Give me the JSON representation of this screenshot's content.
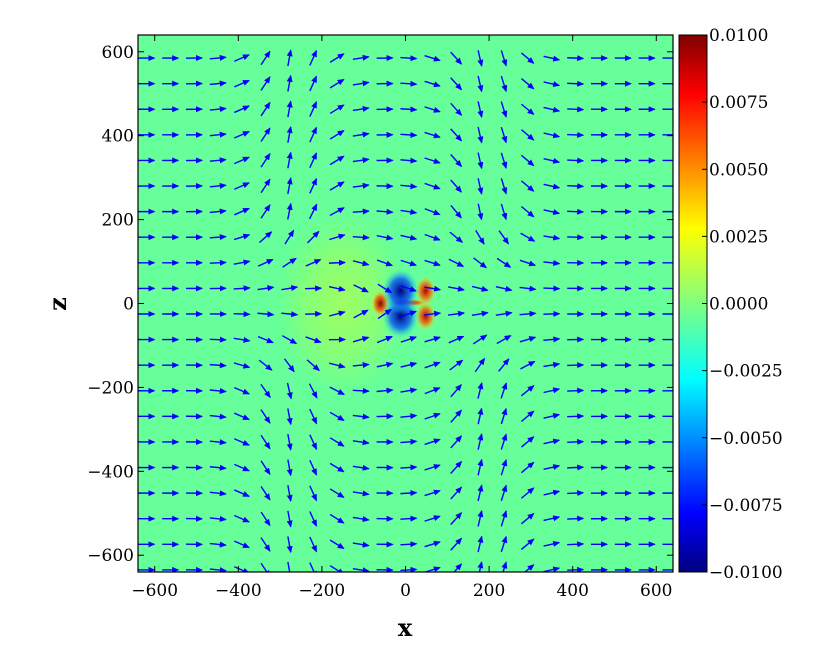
{
  "chart_data": {
    "type": "heatmap",
    "subtype": "heatmap-with-vector-field",
    "title": "",
    "xlabel": "x",
    "ylabel": "z",
    "xlim": [
      -640,
      640
    ],
    "ylim": [
      -640,
      640
    ],
    "grid": false,
    "x_ticks": [
      -600,
      -400,
      -200,
      0,
      200,
      400,
      600
    ],
    "x_tick_labels": [
      "−600",
      "−400",
      "−200",
      "0",
      "200",
      "400",
      "600"
    ],
    "y_ticks": [
      -600,
      -400,
      -200,
      0,
      200,
      400,
      600
    ],
    "y_tick_labels": [
      "−600",
      "−400",
      "−200",
      "0",
      "200",
      "400",
      "600"
    ],
    "colormap": "jet",
    "colorbar": {
      "range": [
        -0.01,
        0.01
      ],
      "ticks": [
        0.01,
        0.0075,
        0.005,
        0.0025,
        0.0,
        -0.0025,
        -0.005,
        -0.0075,
        -0.01
      ],
      "tick_labels": [
        "0.0100",
        "0.0075",
        "0.0050",
        "0.0025",
        "0.0000",
        "−0.0025",
        "−0.0050",
        "−0.0075",
        "−0.0100"
      ]
    },
    "field_background_value": -0.0005,
    "field_features": [
      {
        "x": -12,
        "z": 30,
        "value": -0.01,
        "sx": 28,
        "sz": 34
      },
      {
        "x": -12,
        "z": -30,
        "value": -0.01,
        "sx": 28,
        "sz": 34
      },
      {
        "x": 48,
        "z": 30,
        "value": 0.009,
        "sx": 16,
        "sz": 22
      },
      {
        "x": 48,
        "z": -30,
        "value": 0.009,
        "sx": 16,
        "sz": 22
      },
      {
        "x": -60,
        "z": 0,
        "value": 0.01,
        "sx": 14,
        "sz": 20
      },
      {
        "x": 5,
        "z": 2,
        "value": 0.01,
        "sx": 32,
        "sz": 6
      },
      {
        "x": -150,
        "z": 0,
        "value": 0.0006,
        "sx": 100,
        "sz": 140
      }
    ],
    "vector_field": {
      "color": "#0000ff",
      "x_start": -620,
      "x_step": 57,
      "z_start": -635,
      "z_step": 61,
      "description": "dipole-like flow: mostly rightward arrows, curving vertically near x≈-270 and x≈200, converging toward the origin"
    },
    "vector_grid": {
      "x": [
        -620,
        -563,
        -506,
        -449,
        -392,
        -335,
        -278,
        -221,
        -164,
        -107,
        -50,
        7,
        64,
        121,
        178,
        235,
        292,
        349,
        406,
        463,
        520,
        577,
        634
      ],
      "z": [
        -635,
        -574,
        -513,
        -452,
        -391,
        -330,
        -269,
        -208,
        -147,
        -86,
        -25,
        36,
        97,
        158,
        219,
        280,
        341,
        402,
        463,
        524,
        585,
        646
      ]
    }
  }
}
